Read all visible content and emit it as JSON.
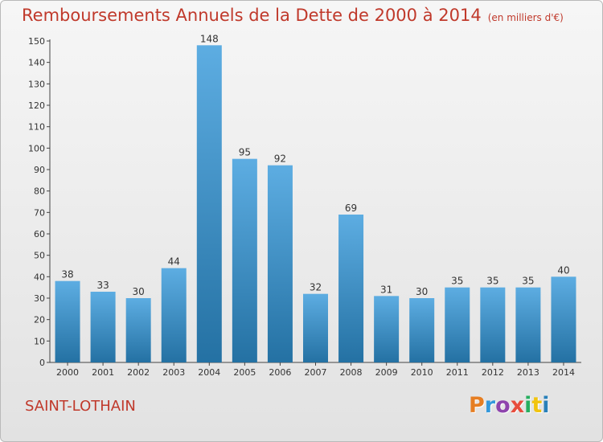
{
  "title": "Remboursements Annuels de la Dette de 2000 à 2014",
  "unit": "(en milliers d'€)",
  "commune": "SAINT-LOTHAIN",
  "logo": {
    "text": "Proxiti",
    "colors": [
      "#e67e22",
      "#3498db",
      "#8e44ad",
      "#e74c3c",
      "#27ae60",
      "#f1c40f",
      "#2980b9"
    ]
  },
  "colors": {
    "title": "#c0392b",
    "bar_light": "#5dade2",
    "bar_dark": "#2471a3"
  },
  "chart_data": {
    "type": "bar",
    "title": "Remboursements Annuels de la Dette de 2000 à 2014",
    "xlabel": "",
    "ylabel": "",
    "categories": [
      "2000",
      "2001",
      "2002",
      "2003",
      "2004",
      "2005",
      "2006",
      "2007",
      "2008",
      "2009",
      "2010",
      "2011",
      "2012",
      "2013",
      "2014"
    ],
    "values": [
      38,
      33,
      30,
      44,
      148,
      95,
      92,
      32,
      69,
      31,
      30,
      35,
      35,
      35,
      40
    ],
    "ylim": [
      0,
      150
    ],
    "yticks": [
      0,
      10,
      20,
      30,
      40,
      50,
      60,
      70,
      80,
      90,
      100,
      110,
      120,
      130,
      140,
      150
    ],
    "grid": false,
    "legend": "none"
  }
}
